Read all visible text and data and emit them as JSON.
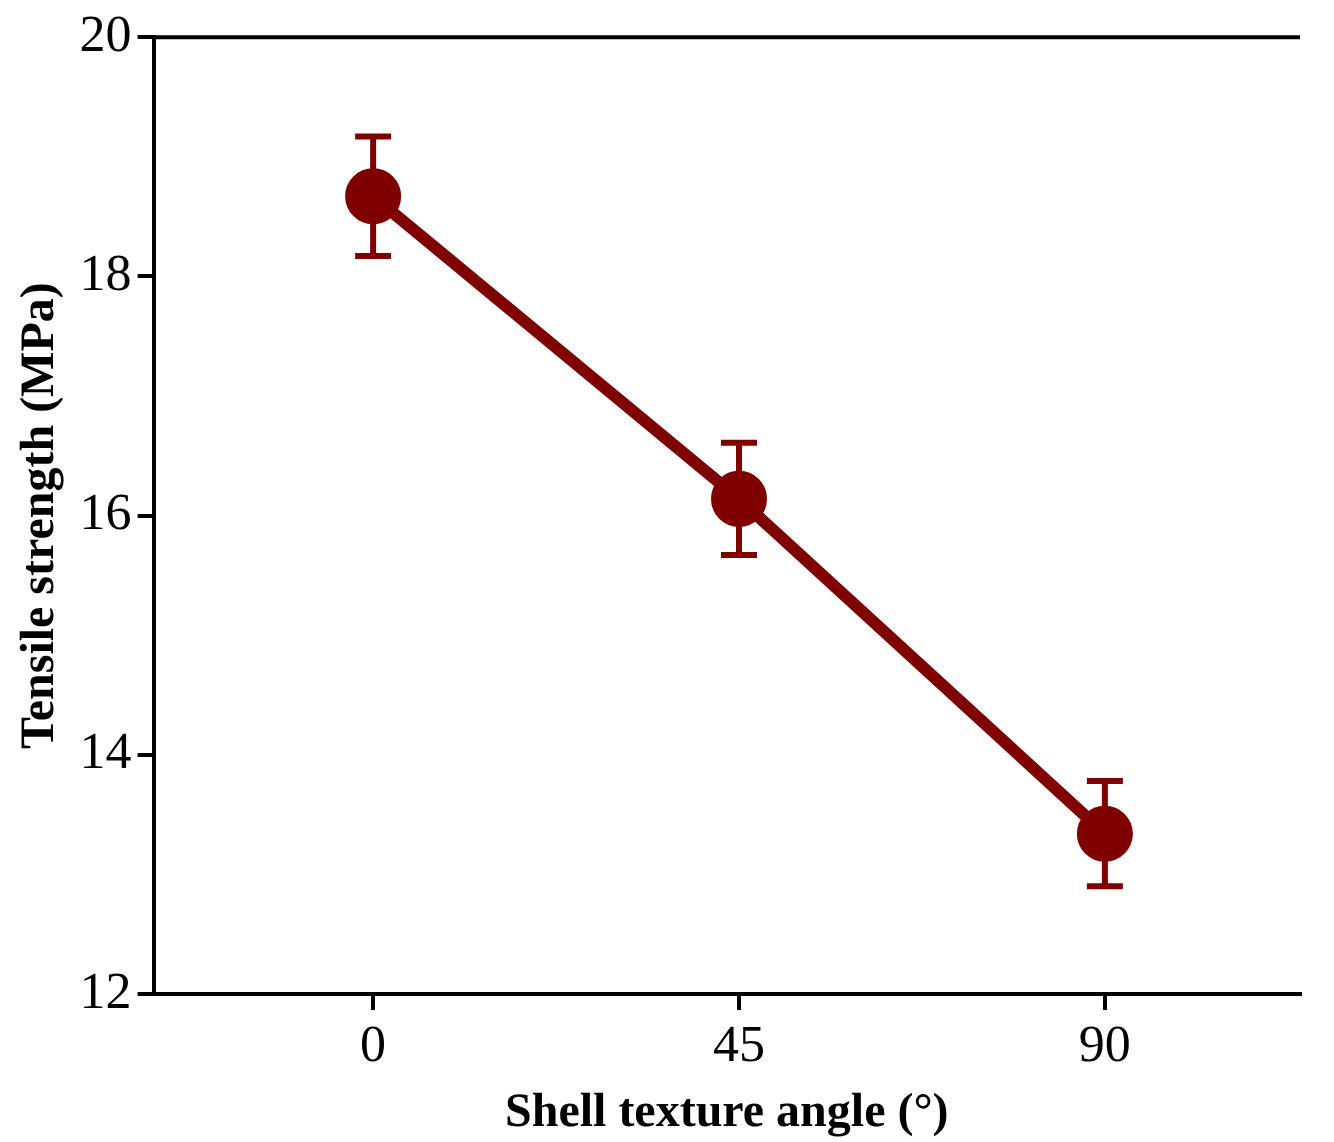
{
  "chart_data": {
    "type": "line",
    "xlabel": "Shell texture angle (°)",
    "ylabel": "Tensile strength (MPa)",
    "x": [
      0,
      45,
      90
    ],
    "series": [
      {
        "color": "#7f0000",
        "values": [
          18.67,
          16.14,
          13.34
        ],
        "errors": [
          0.5,
          0.47,
          0.44
        ]
      }
    ],
    "xlim": [
      -27,
      114
    ],
    "xticks": [
      0,
      45,
      90
    ],
    "ylim": [
      12,
      20
    ],
    "yticks": [
      12,
      14,
      16,
      18,
      20
    ],
    "grid": false,
    "legend": false,
    "marker": "circle",
    "line_style": "solid"
  }
}
